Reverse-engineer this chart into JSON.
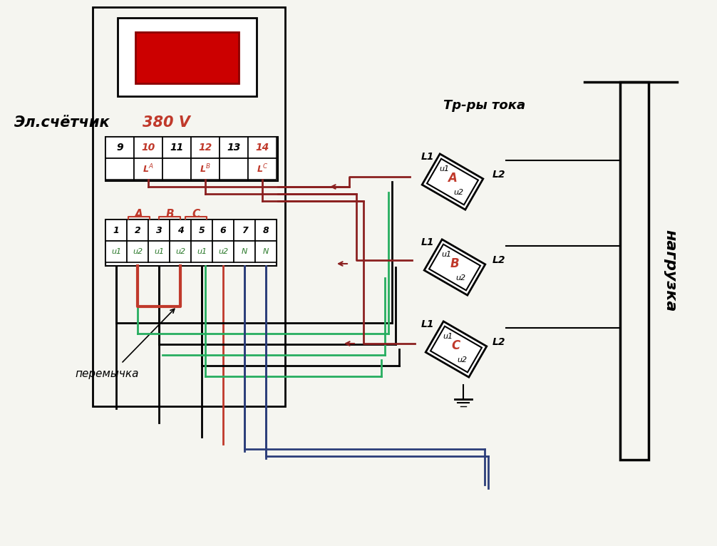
{
  "bg_color": "#f5f5f0",
  "title_black": "Эл.счётчик",
  "title_red": "380 V",
  "label_tr": "Тр-ры тока",
  "label_nagruzka": "нагрузка",
  "label_peremychka": "перемычка",
  "color_A": "#c0392b",
  "color_B": "#27ae60",
  "color_C": "#2c3e7a",
  "color_dark": "#2c2c2c",
  "color_red_dark": "#8b2020",
  "color_terminal_num": "#000000",
  "color_terminal_label": "#2c7a2c"
}
